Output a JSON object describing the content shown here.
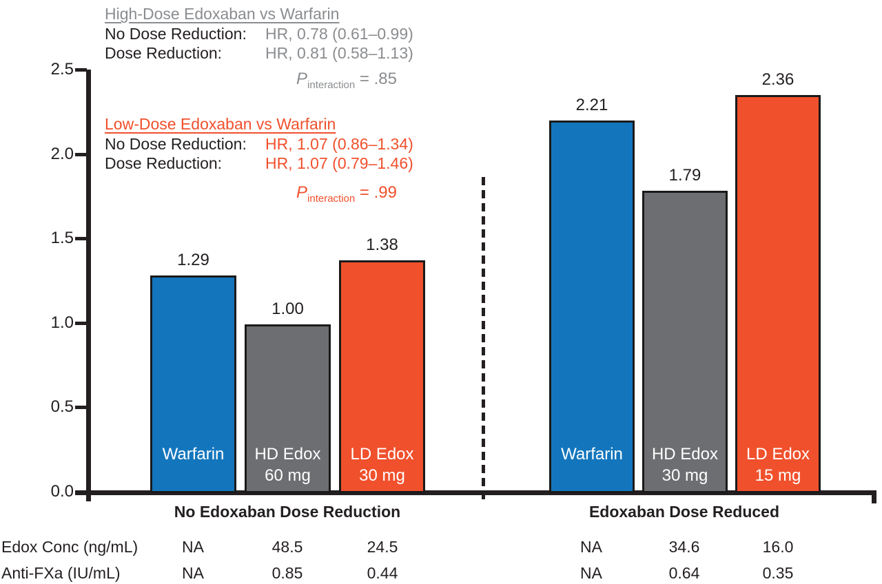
{
  "annotations": {
    "high_dose": {
      "title": "High-Dose Edoxaban vs Warfarin",
      "rows": [
        {
          "label": "No Dose Reduction:",
          "value": "HR, 0.78 (0.61–0.99)"
        },
        {
          "label": "Dose Reduction:",
          "value": "HR, 0.81 (0.58–1.13)"
        }
      ],
      "p_symbol": "P",
      "p_sub": "interaction",
      "p_rest": " = .85",
      "color": "#8a8c8f"
    },
    "low_dose": {
      "title": "Low-Dose Edoxaban vs Warfarin",
      "rows": [
        {
          "label": "No Dose Reduction:",
          "value": "HR, 1.07 (0.86–1.34)"
        },
        {
          "label": "Dose Reduction:",
          "value": "HR, 1.07 (0.79–1.46)"
        }
      ],
      "p_symbol": "P",
      "p_sub": "interaction",
      "p_rest": " = .99",
      "color": "#f0502c"
    }
  },
  "chart_data": {
    "type": "bar",
    "title": "",
    "xlabel": "",
    "ylabel": "",
    "ylim": [
      0,
      2.5
    ],
    "yticks": [
      "0.0",
      "0.5",
      "1.0",
      "1.5",
      "2.0",
      "2.5"
    ],
    "grid": false,
    "colors": {
      "warfarin_blue": "#1376bd",
      "hd_edox_gray": "#6d6e71",
      "ld_edox_orange": "#f0502c"
    },
    "groups": [
      {
        "label": "No Edoxaban Dose Reduction",
        "bars": [
          {
            "name": "Warfarin",
            "line1": "Warfarin",
            "line2": "",
            "value": 1.29,
            "display": "1.29",
            "color": "#1376bd"
          },
          {
            "name": "HD Edox 60 mg",
            "line1": "HD Edox",
            "line2": "60 mg",
            "value": 1.0,
            "display": "1.00",
            "color": "#6d6e71"
          },
          {
            "name": "LD Edox 30 mg",
            "line1": "LD Edox",
            "line2": "30 mg",
            "value": 1.38,
            "display": "1.38",
            "color": "#f0502c"
          }
        ]
      },
      {
        "label": "Edoxaban Dose Reduced",
        "bars": [
          {
            "name": "Warfarin",
            "line1": "Warfarin",
            "line2": "",
            "value": 2.21,
            "display": "2.21",
            "color": "#1376bd"
          },
          {
            "name": "HD Edox 30 mg",
            "line1": "HD Edox",
            "line2": "30 mg",
            "value": 1.79,
            "display": "1.79",
            "color": "#6d6e71"
          },
          {
            "name": "LD Edox 15 mg",
            "line1": "LD Edox",
            "line2": "15 mg",
            "value": 2.36,
            "display": "2.36",
            "color": "#f0502c"
          }
        ]
      }
    ],
    "table": {
      "rows": [
        {
          "label": "Edox Conc (ng/mL)",
          "values": [
            "NA",
            "48.5",
            "24.5",
            "NA",
            "34.6",
            "16.0"
          ]
        },
        {
          "label": "Anti-FXa (IU/mL)",
          "values": [
            "NA",
            "0.85",
            "0.44",
            "NA",
            "0.64",
            "0.35"
          ]
        }
      ]
    }
  }
}
